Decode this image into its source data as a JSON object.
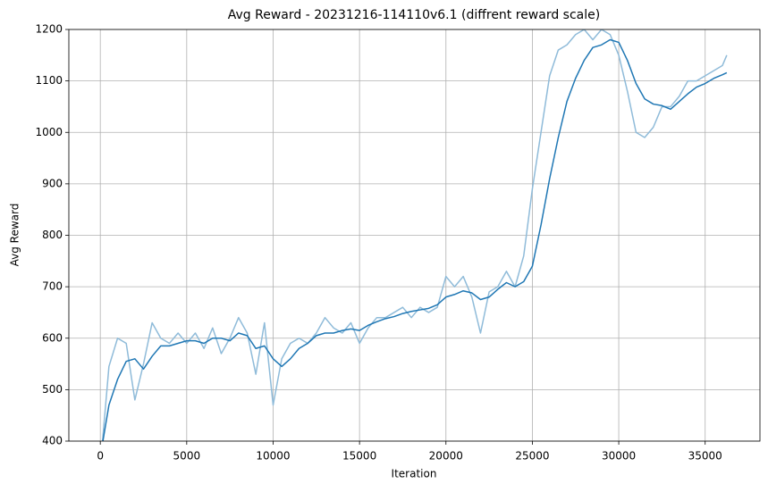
{
  "chart_data": {
    "type": "line",
    "title": "Avg Reward - 20231216-114110v6.1 (diffrent reward scale)",
    "x_label": "Iteration",
    "y_label": "Avg Reward",
    "x": [
      0,
      500,
      1000,
      1500,
      2000,
      2500,
      3000,
      3500,
      4000,
      4500,
      5000,
      5500,
      6000,
      6500,
      7000,
      7500,
      8000,
      8500,
      9000,
      9500,
      10000,
      10500,
      11000,
      11500,
      12000,
      12500,
      13000,
      13500,
      14000,
      14500,
      15000,
      15500,
      16000,
      16500,
      17000,
      17500,
      18000,
      18500,
      19000,
      19500,
      20000,
      20500,
      21000,
      21500,
      22000,
      22500,
      23000,
      23500,
      24000,
      24500,
      25000,
      25500,
      26000,
      26500,
      27000,
      27500,
      28000,
      28500,
      29000,
      29500,
      30000,
      30500,
      31000,
      31500,
      32000,
      32500,
      33000,
      33500,
      34000,
      34500,
      35000,
      35500,
      36000,
      36250
    ],
    "series": [
      {
        "color": "#8fbbd9",
        "values": [
          350,
          545,
          600,
          590,
          480,
          550,
          630,
          600,
          590,
          610,
          590,
          610,
          580,
          620,
          570,
          600,
          640,
          610,
          530,
          630,
          470,
          560,
          590,
          600,
          590,
          610,
          640,
          620,
          610,
          630,
          590,
          620,
          640,
          640,
          650,
          660,
          640,
          660,
          650,
          660,
          720,
          700,
          720,
          680,
          610,
          690,
          700,
          730,
          700,
          760,
          890,
          1000,
          1110,
          1160,
          1170,
          1190,
          1200,
          1180,
          1200,
          1190,
          1150,
          1080,
          1000,
          990,
          1010,
          1050,
          1050,
          1070,
          1100,
          1100,
          1110,
          1120,
          1130,
          1150
        ]
      },
      {
        "color": "#1f77b4",
        "values": [
          370,
          470,
          520,
          555,
          560,
          540,
          565,
          585,
          585,
          590,
          595,
          595,
          590,
          600,
          600,
          595,
          610,
          605,
          580,
          585,
          560,
          545,
          560,
          580,
          590,
          605,
          610,
          610,
          615,
          618,
          615,
          625,
          632,
          638,
          642,
          648,
          652,
          655,
          658,
          665,
          680,
          685,
          692,
          688,
          675,
          680,
          695,
          708,
          700,
          710,
          740,
          820,
          910,
          990,
          1060,
          1105,
          1140,
          1165,
          1170,
          1180,
          1175,
          1140,
          1095,
          1065,
          1055,
          1052,
          1045,
          1060,
          1075,
          1088,
          1095,
          1105,
          1112,
          1116
        ]
      }
    ],
    "xlim": [
      -1820,
      38170
    ],
    "ylim": [
      400,
      1200
    ],
    "xticks": [
      0,
      5000,
      10000,
      15000,
      20000,
      25000,
      30000,
      35000
    ],
    "yticks": [
      400,
      500,
      600,
      700,
      800,
      900,
      1000,
      1100,
      1200
    ],
    "grid": true
  }
}
